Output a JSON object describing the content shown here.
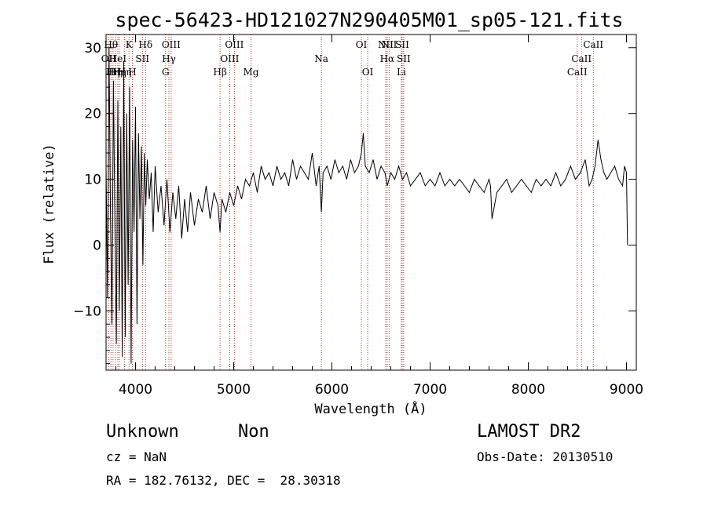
{
  "chart_data": {
    "type": "line",
    "title": "spec-56423-HD121027N290405M01_sp05-121.fits",
    "xlabel": "Wavelength (Å)",
    "ylabel": "Flux (relative)",
    "xlim": [
      3700,
      9100
    ],
    "ylim": [
      -19,
      32
    ],
    "x_ticks": [
      4000,
      5000,
      6000,
      7000,
      8000,
      9000
    ],
    "y_ticks": [
      -10,
      0,
      10,
      20,
      30
    ],
    "grid": false,
    "series": [
      {
        "x": [
          3700,
          3715,
          3730,
          3745,
          3760,
          3775,
          3790,
          3805,
          3820,
          3835,
          3850,
          3865,
          3880,
          3895,
          3910,
          3925,
          3940,
          3955,
          3970,
          3985,
          4000,
          4015,
          4030,
          4045,
          4060,
          4075,
          4090,
          4105,
          4120,
          4140,
          4160,
          4180,
          4200,
          4230,
          4260,
          4290,
          4320,
          4350,
          4380,
          4410,
          4440,
          4470,
          4500,
          4530,
          4560,
          4600,
          4640,
          4680,
          4720,
          4760,
          4800,
          4840,
          4861,
          4880,
          4920,
          4960,
          5000,
          5040,
          5080,
          5120,
          5160,
          5200,
          5240,
          5280,
          5320,
          5360,
          5400,
          5440,
          5480,
          5520,
          5560,
          5600,
          5640,
          5680,
          5720,
          5760,
          5800,
          5840,
          5870,
          5893,
          5910,
          5950,
          5990,
          6030,
          6070,
          6110,
          6150,
          6190,
          6230,
          6270,
          6300,
          6320,
          6340,
          6380,
          6420,
          6460,
          6500,
          6540,
          6563,
          6600,
          6640,
          6680,
          6720,
          6760,
          6800,
          6850,
          6900,
          6950,
          7000,
          7050,
          7100,
          7150,
          7200,
          7250,
          7300,
          7350,
          7400,
          7450,
          7500,
          7550,
          7600,
          7615,
          7630,
          7680,
          7730,
          7780,
          7830,
          7880,
          7930,
          7980,
          8030,
          8080,
          8130,
          8180,
          8230,
          8280,
          8330,
          8380,
          8430,
          8480,
          8530,
          8580,
          8620,
          8650,
          8680,
          8710,
          8740,
          8770,
          8800,
          8840,
          8880,
          8920,
          8960,
          8980,
          9000,
          9010
        ],
        "y": [
          12,
          -8,
          30,
          5,
          -12,
          25,
          3,
          -15,
          22,
          -10,
          18,
          -17,
          28,
          -14,
          20,
          -6,
          24,
          -18,
          16,
          2,
          21,
          -12,
          17,
          4,
          15,
          -3,
          14,
          6,
          13,
          7,
          11,
          2,
          12,
          5,
          9,
          3,
          10,
          2,
          8,
          4,
          9,
          1,
          7,
          2,
          8,
          3,
          7,
          5,
          9,
          4,
          8,
          6,
          2,
          7,
          5,
          8,
          6,
          9,
          7,
          10,
          9,
          11,
          8,
          12,
          10,
          11,
          9,
          12,
          10,
          11,
          9,
          13,
          10,
          12,
          11,
          10,
          14,
          9,
          12,
          5,
          11,
          12,
          10,
          13,
          11,
          12,
          10,
          13,
          11,
          12,
          14,
          17,
          12,
          11,
          13,
          10,
          12,
          11,
          9,
          11,
          10,
          12,
          10,
          11,
          9,
          10,
          11,
          9,
          10,
          9,
          11,
          9,
          10,
          9,
          10,
          9,
          8,
          10,
          9,
          8,
          10,
          9,
          4,
          8,
          9,
          10,
          8,
          9,
          10,
          9,
          8,
          10,
          9,
          10,
          9,
          11,
          9,
          10,
          12,
          10,
          11,
          13,
          9,
          10,
          12,
          16,
          13,
          11,
          10,
          11,
          12,
          10,
          9,
          12,
          11,
          0
        ]
      }
    ],
    "lines": [
      {
        "wave": 3727,
        "label": "OII",
        "row": 1
      },
      {
        "wave": 3750,
        "label": "Hθ",
        "row": 0
      },
      {
        "wave": 3771,
        "label": "Hη",
        "row": 2
      },
      {
        "wave": 3798,
        "label": "Hη",
        "row": 2
      },
      {
        "wave": 3820,
        "label": "HeI",
        "row": 1
      },
      {
        "wave": 3835,
        "label": "Hη",
        "row": 2
      },
      {
        "wave": 3889,
        "label": "Hη",
        "row": 2
      },
      {
        "wave": 3934,
        "label": "K",
        "row": 0
      },
      {
        "wave": 3968,
        "label": "H",
        "row": 2
      },
      {
        "wave": 4070,
        "label": "SII",
        "row": 1
      },
      {
        "wave": 4102,
        "label": "Hδ",
        "row": 0
      },
      {
        "wave": 4306,
        "label": "G",
        "row": 2
      },
      {
        "wave": 4340,
        "label": "Hγ",
        "row": 1
      },
      {
        "wave": 4363,
        "label": "OIII",
        "row": 0
      },
      {
        "wave": 4861,
        "label": "Hβ",
        "row": 2
      },
      {
        "wave": 4959,
        "label": "OIII",
        "row": 1
      },
      {
        "wave": 5007,
        "label": "OIII",
        "row": 0
      },
      {
        "wave": 5176,
        "label": "Mg",
        "row": 2
      },
      {
        "wave": 5893,
        "label": "Na",
        "row": 1
      },
      {
        "wave": 6300,
        "label": "OI",
        "row": 0
      },
      {
        "wave": 6364,
        "label": "OI",
        "row": 2
      },
      {
        "wave": 6548,
        "label": "NII",
        "row": 0
      },
      {
        "wave": 6563,
        "label": "Hα",
        "row": 1
      },
      {
        "wave": 6583,
        "label": "NII",
        "row": 0
      },
      {
        "wave": 6707,
        "label": "Li",
        "row": 2
      },
      {
        "wave": 6716,
        "label": "SII",
        "row": 0
      },
      {
        "wave": 6731,
        "label": "SII",
        "row": 1
      },
      {
        "wave": 8498,
        "label": "CaII",
        "row": 2
      },
      {
        "wave": 8542,
        "label": "CaII",
        "row": 1
      },
      {
        "wave": 8662,
        "label": "CaII",
        "row": 0
      }
    ]
  },
  "footer": {
    "object_class": "Unknown",
    "subclass": "Non",
    "survey": "LAMOST DR2",
    "cz": "cz = NaN",
    "obs_date": "Obs-Date: 20130510",
    "coords": "RA = 182.76132, DEC =  28.30318"
  }
}
